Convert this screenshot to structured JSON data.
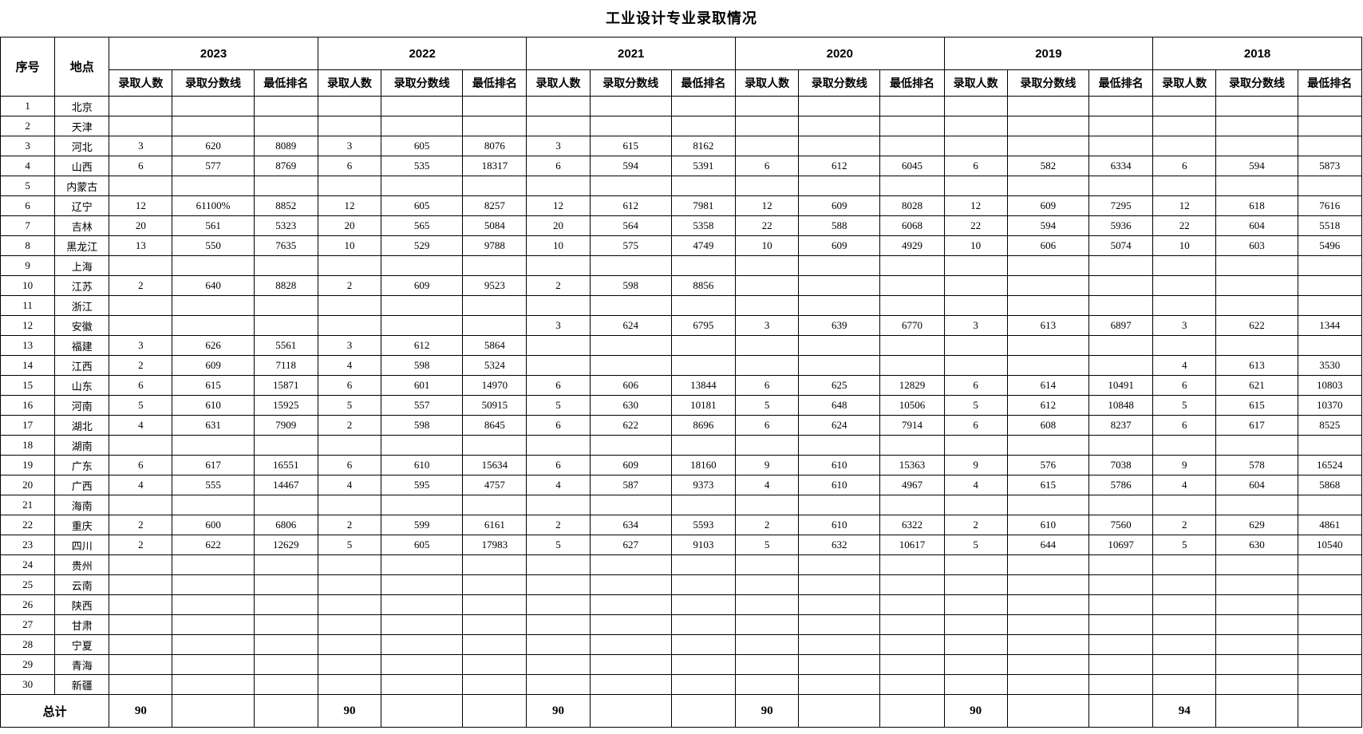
{
  "title": "工业设计专业录取情况",
  "table": {
    "corner_headers": {
      "index": "序号",
      "location": "地点"
    },
    "years": [
      "2023",
      "2022",
      "2021",
      "2020",
      "2019",
      "2018"
    ],
    "sub_headers": [
      "录取人数",
      "录取分数线",
      "最低排名"
    ],
    "rows": [
      {
        "no": "1",
        "location": "北京",
        "cells": [
          "",
          "",
          "",
          "",
          "",
          "",
          "",
          "",
          "",
          "",
          "",
          "",
          "",
          "",
          "",
          "",
          "",
          ""
        ]
      },
      {
        "no": "2",
        "location": "天津",
        "cells": [
          "",
          "",
          "",
          "",
          "",
          "",
          "",
          "",
          "",
          "",
          "",
          "",
          "",
          "",
          "",
          "",
          "",
          ""
        ]
      },
      {
        "no": "3",
        "location": "河北",
        "cells": [
          "3",
          "620",
          "8089",
          "3",
          "605",
          "8076",
          "3",
          "615",
          "8162",
          "",
          "",
          "",
          "",
          "",
          "",
          "",
          "",
          ""
        ]
      },
      {
        "no": "4",
        "location": "山西",
        "cells": [
          "6",
          "577",
          "8769",
          "6",
          "535",
          "18317",
          "6",
          "594",
          "5391",
          "6",
          "612",
          "6045",
          "6",
          "582",
          "6334",
          "6",
          "594",
          "5873"
        ]
      },
      {
        "no": "5",
        "location": "内蒙古",
        "cells": [
          "",
          "",
          "",
          "",
          "",
          "",
          "",
          "",
          "",
          "",
          "",
          "",
          "",
          "",
          "",
          "",
          "",
          ""
        ]
      },
      {
        "no": "6",
        "location": "辽宁",
        "cells": [
          "12",
          "61100%",
          "8852",
          "12",
          "605",
          "8257",
          "12",
          "612",
          "7981",
          "12",
          "609",
          "8028",
          "12",
          "609",
          "7295",
          "12",
          "618",
          "7616"
        ]
      },
      {
        "no": "7",
        "location": "吉林",
        "cells": [
          "20",
          "561",
          "5323",
          "20",
          "565",
          "5084",
          "20",
          "564",
          "5358",
          "22",
          "588",
          "6068",
          "22",
          "594",
          "5936",
          "22",
          "604",
          "5518"
        ]
      },
      {
        "no": "8",
        "location": "黑龙江",
        "cells": [
          "13",
          "550",
          "7635",
          "10",
          "529",
          "9788",
          "10",
          "575",
          "4749",
          "10",
          "609",
          "4929",
          "10",
          "606",
          "5074",
          "10",
          "603",
          "5496"
        ]
      },
      {
        "no": "9",
        "location": "上海",
        "cells": [
          "",
          "",
          "",
          "",
          "",
          "",
          "",
          "",
          "",
          "",
          "",
          "",
          "",
          "",
          "",
          "",
          "",
          ""
        ]
      },
      {
        "no": "10",
        "location": "江苏",
        "cells": [
          "2",
          "640",
          "8828",
          "2",
          "609",
          "9523",
          "2",
          "598",
          "8856",
          "",
          "",
          "",
          "",
          "",
          "",
          "",
          "",
          ""
        ]
      },
      {
        "no": "11",
        "location": "浙江",
        "cells": [
          "",
          "",
          "",
          "",
          "",
          "",
          "",
          "",
          "",
          "",
          "",
          "",
          "",
          "",
          "",
          "",
          "",
          ""
        ]
      },
      {
        "no": "12",
        "location": "安徽",
        "cells": [
          "",
          "",
          "",
          "",
          "",
          "",
          "3",
          "624",
          "6795",
          "3",
          "639",
          "6770",
          "3",
          "613",
          "6897",
          "3",
          "622",
          "1344"
        ]
      },
      {
        "no": "13",
        "location": "福建",
        "cells": [
          "3",
          "626",
          "5561",
          "3",
          "612",
          "5864",
          "",
          "",
          "",
          "",
          "",
          "",
          "",
          "",
          "",
          "",
          "",
          ""
        ]
      },
      {
        "no": "14",
        "location": "江西",
        "cells": [
          "2",
          "609",
          "7118",
          "4",
          "598",
          "5324",
          "",
          "",
          "",
          "",
          "",
          "",
          "",
          "",
          "",
          "4",
          "613",
          "3530"
        ]
      },
      {
        "no": "15",
        "location": "山东",
        "cells": [
          "6",
          "615",
          "15871",
          "6",
          "601",
          "14970",
          "6",
          "606",
          "13844",
          "6",
          "625",
          "12829",
          "6",
          "614",
          "10491",
          "6",
          "621",
          "10803"
        ]
      },
      {
        "no": "16",
        "location": "河南",
        "cells": [
          "5",
          "610",
          "15925",
          "5",
          "557",
          "50915",
          "5",
          "630",
          "10181",
          "5",
          "648",
          "10506",
          "5",
          "612",
          "10848",
          "5",
          "615",
          "10370"
        ]
      },
      {
        "no": "17",
        "location": "湖北",
        "cells": [
          "4",
          "631",
          "7909",
          "2",
          "598",
          "8645",
          "6",
          "622",
          "8696",
          "6",
          "624",
          "7914",
          "6",
          "608",
          "8237",
          "6",
          "617",
          "8525"
        ]
      },
      {
        "no": "18",
        "location": "湖南",
        "cells": [
          "",
          "",
          "",
          "",
          "",
          "",
          "",
          "",
          "",
          "",
          "",
          "",
          "",
          "",
          "",
          "",
          "",
          ""
        ]
      },
      {
        "no": "19",
        "location": "广东",
        "cells": [
          "6",
          "617",
          "16551",
          "6",
          "610",
          "15634",
          "6",
          "609",
          "18160",
          "9",
          "610",
          "15363",
          "9",
          "576",
          "7038",
          "9",
          "578",
          "16524"
        ]
      },
      {
        "no": "20",
        "location": "广西",
        "cells": [
          "4",
          "555",
          "14467",
          "4",
          "595",
          "4757",
          "4",
          "587",
          "9373",
          "4",
          "610",
          "4967",
          "4",
          "615",
          "5786",
          "4",
          "604",
          "5868"
        ]
      },
      {
        "no": "21",
        "location": "海南",
        "cells": [
          "",
          "",
          "",
          "",
          "",
          "",
          "",
          "",
          "",
          "",
          "",
          "",
          "",
          "",
          "",
          "",
          "",
          ""
        ]
      },
      {
        "no": "22",
        "location": "重庆",
        "cells": [
          "2",
          "600",
          "6806",
          "2",
          "599",
          "6161",
          "2",
          "634",
          "5593",
          "2",
          "610",
          "6322",
          "2",
          "610",
          "7560",
          "2",
          "629",
          "4861"
        ]
      },
      {
        "no": "23",
        "location": "四川",
        "cells": [
          "2",
          "622",
          "12629",
          "5",
          "605",
          "17983",
          "5",
          "627",
          "9103",
          "5",
          "632",
          "10617",
          "5",
          "644",
          "10697",
          "5",
          "630",
          "10540"
        ]
      },
      {
        "no": "24",
        "location": "贵州",
        "cells": [
          "",
          "",
          "",
          "",
          "",
          "",
          "",
          "",
          "",
          "",
          "",
          "",
          "",
          "",
          "",
          "",
          "",
          ""
        ]
      },
      {
        "no": "25",
        "location": "云南",
        "cells": [
          "",
          "",
          "",
          "",
          "",
          "",
          "",
          "",
          "",
          "",
          "",
          "",
          "",
          "",
          "",
          "",
          "",
          ""
        ]
      },
      {
        "no": "26",
        "location": "陕西",
        "cells": [
          "",
          "",
          "",
          "",
          "",
          "",
          "",
          "",
          "",
          "",
          "",
          "",
          "",
          "",
          "",
          "",
          "",
          ""
        ]
      },
      {
        "no": "27",
        "location": "甘肃",
        "cells": [
          "",
          "",
          "",
          "",
          "",
          "",
          "",
          "",
          "",
          "",
          "",
          "",
          "",
          "",
          "",
          "",
          "",
          ""
        ]
      },
      {
        "no": "28",
        "location": "宁夏",
        "cells": [
          "",
          "",
          "",
          "",
          "",
          "",
          "",
          "",
          "",
          "",
          "",
          "",
          "",
          "",
          "",
          "",
          "",
          ""
        ]
      },
      {
        "no": "29",
        "location": "青海",
        "cells": [
          "",
          "",
          "",
          "",
          "",
          "",
          "",
          "",
          "",
          "",
          "",
          "",
          "",
          "",
          "",
          "",
          "",
          ""
        ]
      },
      {
        "no": "30",
        "location": "新疆",
        "cells": [
          "",
          "",
          "",
          "",
          "",
          "",
          "",
          "",
          "",
          "",
          "",
          "",
          "",
          "",
          "",
          "",
          "",
          ""
        ]
      }
    ],
    "total": {
      "label": "总计",
      "values": [
        "90",
        "",
        "",
        "90",
        "",
        "",
        "90",
        "",
        "",
        "90",
        "",
        "",
        "90",
        "",
        "",
        "94",
        "",
        ""
      ]
    }
  }
}
